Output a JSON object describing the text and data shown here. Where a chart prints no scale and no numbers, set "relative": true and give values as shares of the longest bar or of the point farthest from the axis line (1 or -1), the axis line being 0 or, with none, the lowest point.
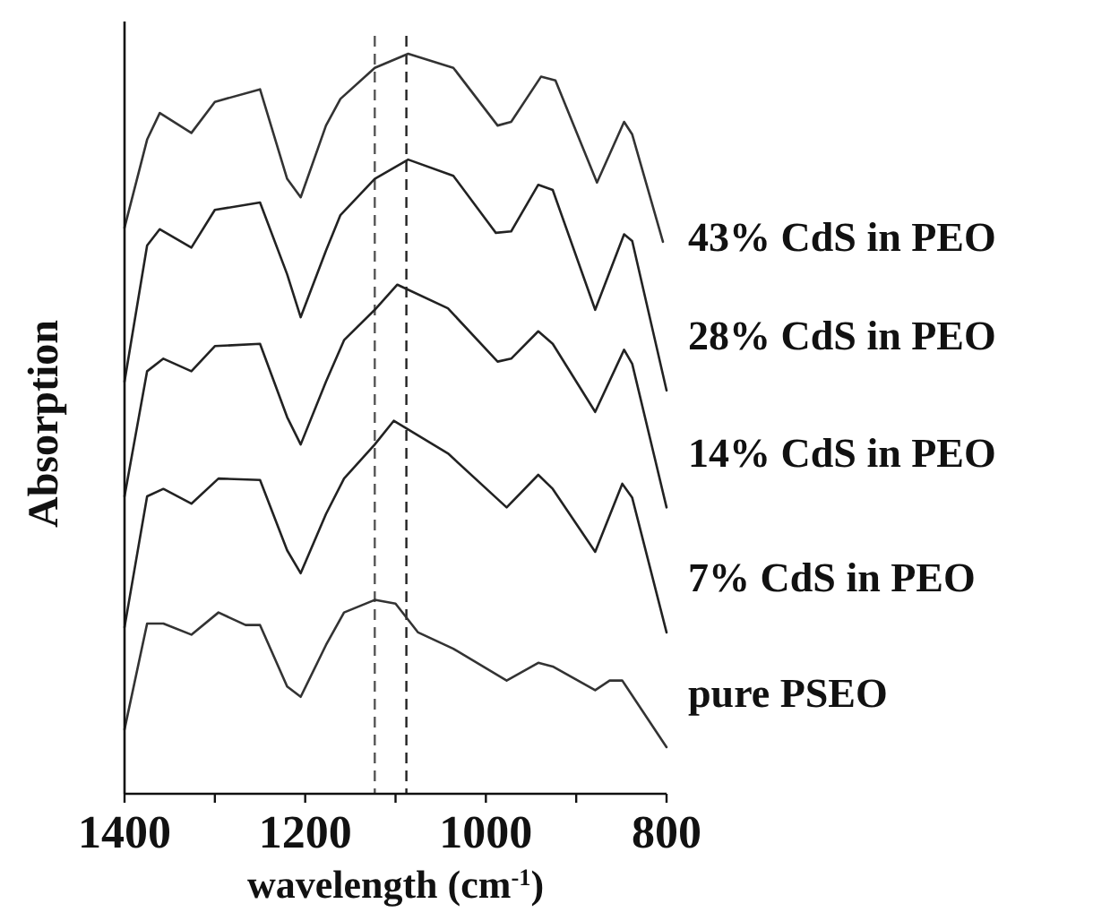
{
  "chart_data": {
    "type": "line",
    "relative": true,
    "xlabel": "wavelength (cm$^{-1}$)",
    "ylabel": "Absorption",
    "xlim": [
      1400,
      800
    ],
    "xticks": [
      1400,
      {
        "value": 1300,
        "label": null
      },
      1200,
      {
        "value": 1100,
        "label": null
      },
      1000,
      {
        "value": 900,
        "label": null
      },
      800
    ],
    "marker": "none",
    "line_style": "solid",
    "ref_lines": [
      {
        "axis": "x",
        "value": 1123,
        "line_style": "dashed",
        "color": "#555555"
      },
      {
        "axis": "x",
        "value": 1088,
        "line_style": "dashed",
        "color": "#222222"
      }
    ],
    "series": [
      {
        "name": "43% CdS in PEO",
        "color": "#333333",
        "x": [
          1400,
          1375,
          1361,
          1326,
          1300,
          1250,
          1220,
          1205,
          1177,
          1161,
          1123,
          1086,
          1036,
          987,
          972,
          939,
          923,
          877,
          847,
          838,
          804
        ],
        "values": [
          0.765,
          0.884,
          0.92,
          0.893,
          0.935,
          0.952,
          0.831,
          0.806,
          0.903,
          0.939,
          0.981,
          1.0,
          0.981,
          0.903,
          0.908,
          0.969,
          0.964,
          0.826,
          0.908,
          0.891,
          0.746
        ]
      },
      {
        "name": "28% CdS in PEO",
        "color": "#222222",
        "x": [
          1400,
          1375,
          1361,
          1326,
          1300,
          1250,
          1220,
          1205,
          1177,
          1161,
          1123,
          1086,
          1036,
          989,
          972,
          942,
          926,
          879,
          847,
          838,
          800
        ],
        "values": [
          0.557,
          0.741,
          0.763,
          0.738,
          0.789,
          0.799,
          0.702,
          0.644,
          0.734,
          0.782,
          0.831,
          0.857,
          0.835,
          0.758,
          0.76,
          0.823,
          0.816,
          0.654,
          0.756,
          0.747,
          0.545
        ]
      },
      {
        "name": "14% CdS in PEO",
        "color": "#222222",
        "x": [
          1400,
          1375,
          1357,
          1326,
          1300,
          1250,
          1220,
          1205,
          1177,
          1157,
          1123,
          1098,
          1042,
          987,
          972,
          942,
          926,
          879,
          847,
          838,
          800
        ],
        "values": [
          0.402,
          0.571,
          0.588,
          0.571,
          0.605,
          0.608,
          0.509,
          0.472,
          0.557,
          0.613,
          0.654,
          0.688,
          0.656,
          0.584,
          0.588,
          0.625,
          0.608,
          0.516,
          0.6,
          0.581,
          0.387
        ]
      },
      {
        "name": "7% CdS in PEO",
        "color": "#222222",
        "x": [
          1400,
          1375,
          1357,
          1326,
          1296,
          1250,
          1220,
          1205,
          1177,
          1157,
          1123,
          1102,
          1042,
          977,
          942,
          926,
          879,
          849,
          838,
          800
        ],
        "values": [
          0.225,
          0.402,
          0.412,
          0.392,
          0.426,
          0.424,
          0.329,
          0.298,
          0.378,
          0.426,
          0.472,
          0.504,
          0.46,
          0.387,
          0.431,
          0.412,
          0.327,
          0.419,
          0.4,
          0.218
        ]
      },
      {
        "name": "pure PSEO",
        "color": "#333333",
        "x": [
          1400,
          1375,
          1357,
          1326,
          1296,
          1266,
          1250,
          1220,
          1205,
          1177,
          1157,
          1123,
          1100,
          1075,
          1036,
          977,
          942,
          926,
          879,
          863,
          849,
          800
        ],
        "values": [
          0.087,
          0.23,
          0.23,
          0.215,
          0.245,
          0.228,
          0.228,
          0.145,
          0.131,
          0.201,
          0.245,
          0.262,
          0.257,
          0.218,
          0.196,
          0.153,
          0.177,
          0.172,
          0.14,
          0.153,
          0.153,
          0.063
        ]
      }
    ]
  }
}
